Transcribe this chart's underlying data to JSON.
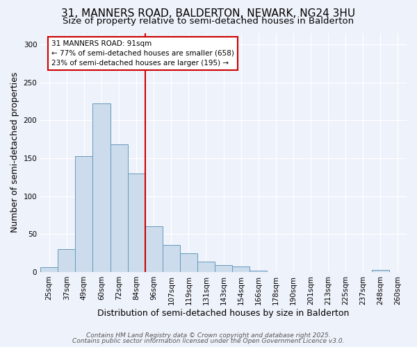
{
  "title_line1": "31, MANNERS ROAD, BALDERTON, NEWARK, NG24 3HU",
  "title_line2": "Size of property relative to semi-detached houses in Balderton",
  "xlabel": "Distribution of semi-detached houses by size in Balderton",
  "ylabel": "Number of semi-detached properties",
  "categories": [
    "25sqm",
    "37sqm",
    "49sqm",
    "60sqm",
    "72sqm",
    "84sqm",
    "96sqm",
    "107sqm",
    "119sqm",
    "131sqm",
    "143sqm",
    "154sqm",
    "166sqm",
    "178sqm",
    "190sqm",
    "201sqm",
    "213sqm",
    "225sqm",
    "237sqm",
    "248sqm",
    "260sqm"
  ],
  "values": [
    6,
    30,
    153,
    222,
    168,
    130,
    60,
    36,
    25,
    14,
    9,
    7,
    2,
    0,
    0,
    0,
    0,
    0,
    0,
    3,
    0
  ],
  "bar_color": "#ccdcec",
  "bar_edge_color": "#6699bb",
  "red_line_index": 5.5,
  "annotation_text": "31 MANNERS ROAD: 91sqm\n← 77% of semi-detached houses are smaller (658)\n23% of semi-detached houses are larger (195) →",
  "annotation_box_color": "#ffffff",
  "annotation_box_edge": "#cc0000",
  "red_line_color": "#cc0000",
  "ylim": [
    0,
    315
  ],
  "yticks": [
    0,
    50,
    100,
    150,
    200,
    250,
    300
  ],
  "background_color": "#eef2fa",
  "footer_line1": "Contains HM Land Registry data © Crown copyright and database right 2025.",
  "footer_line2": "Contains public sector information licensed under the Open Government Licence v3.0.",
  "title_fontsize": 11,
  "subtitle_fontsize": 9.5,
  "axis_label_fontsize": 9,
  "tick_fontsize": 7.5,
  "footer_fontsize": 6.5,
  "annotation_fontsize": 7.5
}
